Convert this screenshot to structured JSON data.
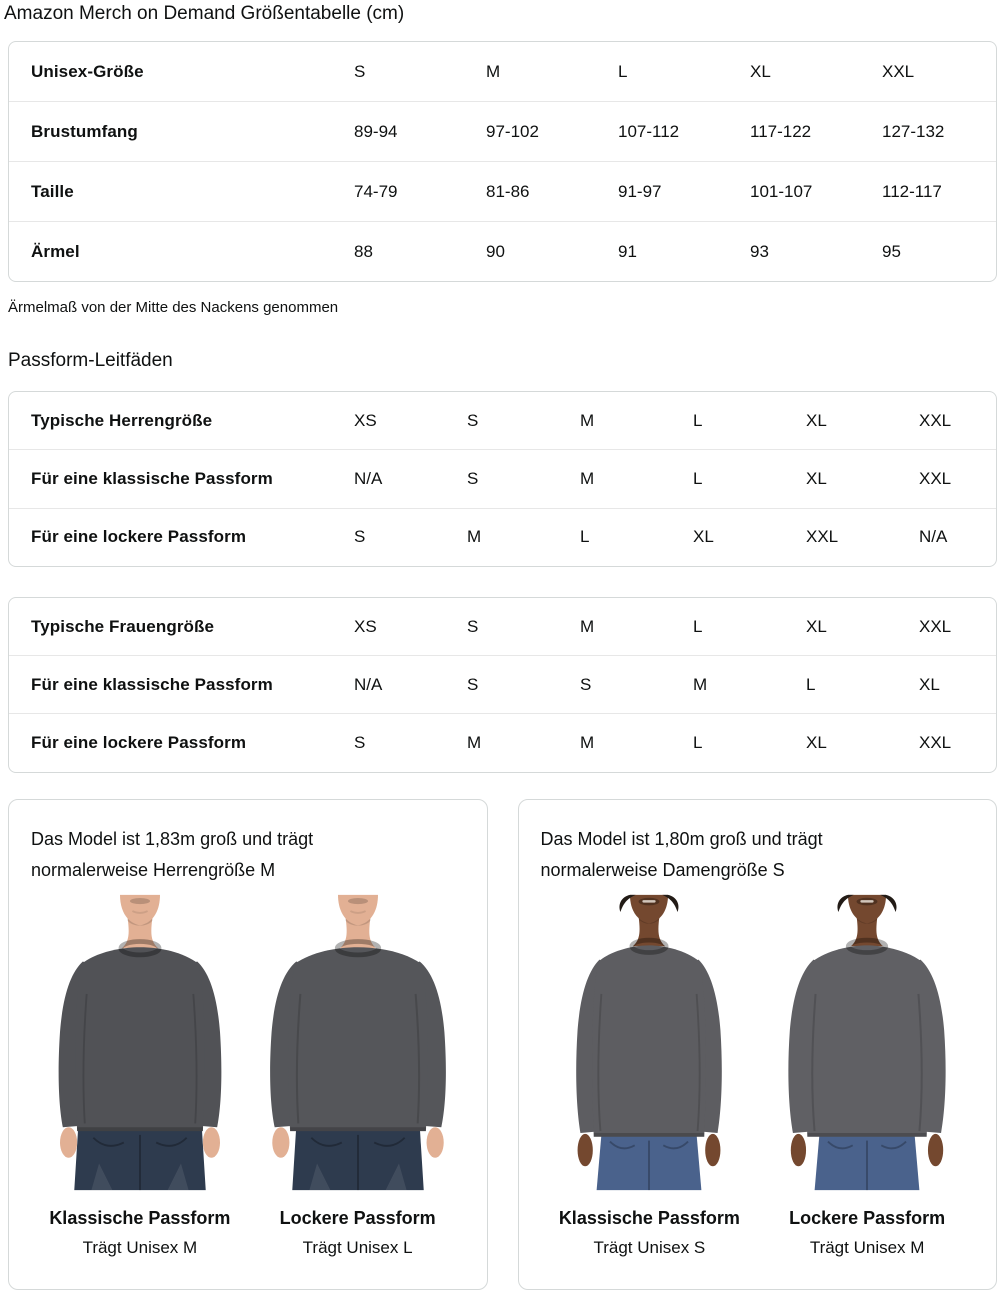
{
  "title": "Amazon Merch on Demand Größentabelle (cm)",
  "size_table": {
    "rows": [
      {
        "label": "Unisex-Größe",
        "values": [
          "S",
          "M",
          "L",
          "XL",
          "XXL"
        ]
      },
      {
        "label": "Brustumfang",
        "values": [
          "89-94",
          "97-102",
          "107-112",
          "117-122",
          "127-132"
        ]
      },
      {
        "label": "Taille",
        "values": [
          "74-79",
          "81-86",
          "91-97",
          "101-107",
          "112-117"
        ]
      },
      {
        "label": "Ärmel",
        "values": [
          "88",
          "90",
          "91",
          "93",
          "95"
        ]
      }
    ]
  },
  "note": "Ärmelmaß von der Mitte des Nackens genommen",
  "fit_heading": "Passform-Leitfäden",
  "men_table": {
    "rows": [
      {
        "label": "Typische Herrengröße",
        "values": [
          "XS",
          "S",
          "M",
          "L",
          "XL",
          "XXL"
        ]
      },
      {
        "label": "Für eine klassische Passform",
        "values": [
          "N/A",
          "S",
          "M",
          "L",
          "XL",
          "XXL"
        ]
      },
      {
        "label": "Für eine lockere Passform",
        "values": [
          "S",
          "M",
          "L",
          "XL",
          "XXL",
          "N/A"
        ]
      }
    ]
  },
  "women_table": {
    "rows": [
      {
        "label": "Typische Frauengröße",
        "values": [
          "XS",
          "S",
          "M",
          "L",
          "XL",
          "XXL"
        ]
      },
      {
        "label": "Für eine klassische Passform",
        "values": [
          "N/A",
          "S",
          "S",
          "M",
          "L",
          "XL"
        ]
      },
      {
        "label": "Für eine lockere Passform",
        "values": [
          "S",
          "M",
          "M",
          "L",
          "XL",
          "XXL"
        ]
      }
    ]
  },
  "colors": {
    "text": "#0f1111",
    "table_border": "#d5d9d9",
    "row_divider": "#e7e7e7"
  },
  "cards": [
    {
      "header": "Das Model ist 1,83m groß und trägt normalerweise Herrengröße M",
      "figures": [
        {
          "model": "male",
          "fit": "classic",
          "caption_title": "Klassische Passform",
          "caption_sub": "Trägt Unisex M",
          "skin_color": "#e2b094",
          "shirt_color": "#515256",
          "jeans_color": "#2e3b4e"
        },
        {
          "model": "male",
          "fit": "loose",
          "caption_title": "Lockere Passform",
          "caption_sub": "Trägt Unisex L",
          "skin_color": "#e2b094",
          "shirt_color": "#55565a",
          "jeans_color": "#2e3b4e"
        }
      ]
    },
    {
      "header": "Das Model ist 1,80m groß und trägt normalerweise Damengröße S",
      "figures": [
        {
          "model": "female",
          "fit": "classic",
          "caption_title": "Klassische Passform",
          "caption_sub": "Trägt Unisex S",
          "skin_color": "#74482f",
          "shirt_color": "#5d5d61",
          "jeans_color": "#4a628c",
          "hair_color": "#221b16"
        },
        {
          "model": "female",
          "fit": "loose",
          "caption_title": "Lockere Passform",
          "caption_sub": "Trägt Unisex M",
          "skin_color": "#74482f",
          "shirt_color": "#606064",
          "jeans_color": "#4a628c",
          "hair_color": "#221b16"
        }
      ]
    }
  ]
}
